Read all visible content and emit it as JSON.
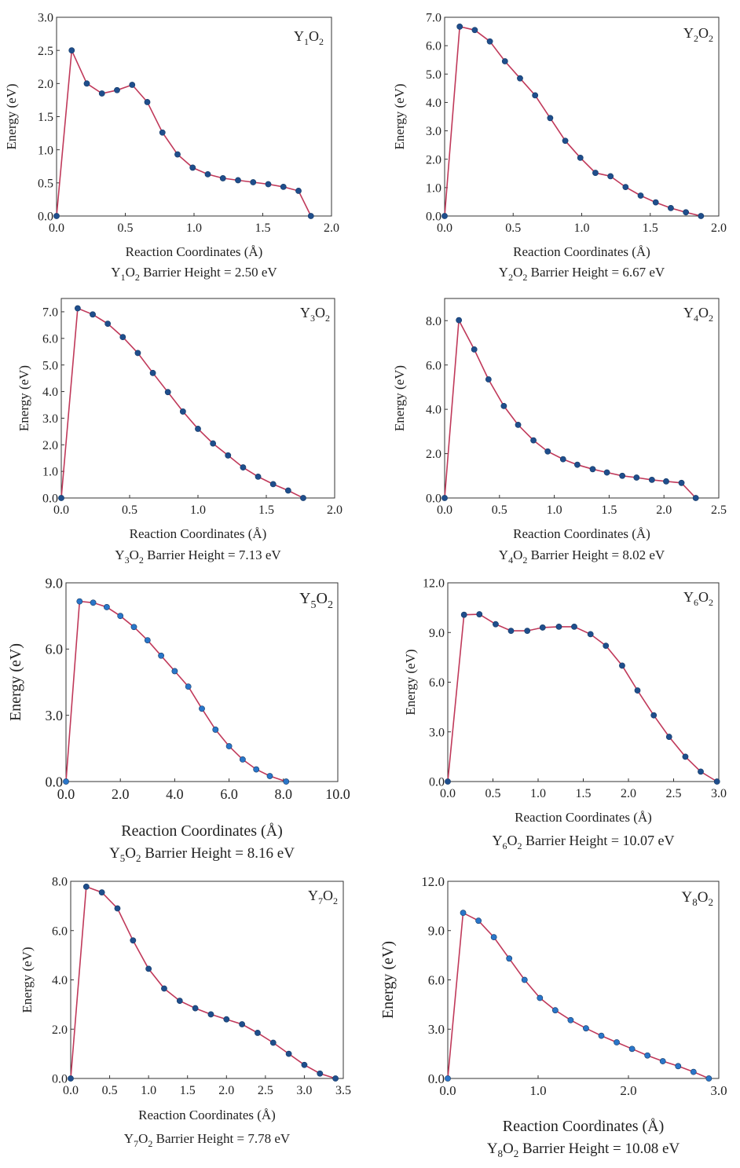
{
  "chart_data": [
    {
      "type": "line",
      "title": "Y1O2",
      "caption": "Y1O2 Barrier Height = 2.50 eV",
      "xlabel": "Reaction Coordinates (Å)",
      "ylabel": "Energy (eV)",
      "xlim": [
        0,
        2.0
      ],
      "ylim": [
        0,
        3.0
      ],
      "xticks": [
        0,
        0.5,
        1.0,
        1.5,
        2.0
      ],
      "xtick_labels": [
        "0.0",
        "0.5",
        "1.0",
        "1.5",
        "2.0"
      ],
      "yticks": [
        0,
        0.5,
        1.0,
        1.5,
        2.0,
        2.5,
        3.0
      ],
      "ytick_labels": [
        "0.0",
        "0.5",
        "1.0",
        "1.5",
        "2.0",
        "2.5",
        "3.0"
      ],
      "line_color": "#c0395a",
      "marker_color": "#1f4e8c",
      "x": [
        0,
        0.11,
        0.22,
        0.33,
        0.44,
        0.55,
        0.66,
        0.77,
        0.88,
        0.99,
        1.1,
        1.21,
        1.32,
        1.43,
        1.54,
        1.65,
        1.76,
        1.85
      ],
      "y": [
        0,
        2.5,
        2.0,
        1.85,
        1.9,
        1.98,
        1.72,
        1.26,
        0.93,
        0.73,
        0.63,
        0.57,
        0.54,
        0.51,
        0.48,
        0.44,
        0.38,
        0
      ]
    },
    {
      "type": "line",
      "title": "Y2O2",
      "caption": "Y2O2 Barrier Height = 6.67 eV",
      "xlabel": "Reaction Coordinates (Å)",
      "ylabel": "Energy (eV)",
      "xlim": [
        0,
        2.0
      ],
      "ylim": [
        0,
        7.0
      ],
      "xticks": [
        0,
        0.5,
        1.0,
        1.5,
        2.0
      ],
      "xtick_labels": [
        "0.0",
        "0.5",
        "1.0",
        "1.5",
        "2.0"
      ],
      "yticks": [
        0,
        1,
        2,
        3,
        4,
        5,
        6,
        7
      ],
      "ytick_labels": [
        "0.0",
        "1.0",
        "2.0",
        "3.0",
        "4.0",
        "5.0",
        "6.0",
        "7.0"
      ],
      "line_color": "#c0395a",
      "marker_color": "#1f4e8c",
      "x": [
        0,
        0.11,
        0.22,
        0.33,
        0.44,
        0.55,
        0.66,
        0.77,
        0.88,
        0.99,
        1.1,
        1.21,
        1.32,
        1.43,
        1.54,
        1.65,
        1.76,
        1.87
      ],
      "y": [
        0,
        6.67,
        6.55,
        6.15,
        5.45,
        4.85,
        4.25,
        3.45,
        2.65,
        2.05,
        1.52,
        1.4,
        1.02,
        0.72,
        0.48,
        0.28,
        0.13,
        0
      ]
    },
    {
      "type": "line",
      "title": "Y3O2",
      "caption": "Y3O2 Barrier Height = 7.13 eV",
      "xlabel": "Reaction Coordinates (Å)",
      "ylabel": "Energy (eV)",
      "xlim": [
        0,
        2.0
      ],
      "ylim": [
        0,
        7.5
      ],
      "xticks": [
        0,
        0.5,
        1.0,
        1.5,
        2.0
      ],
      "xtick_labels": [
        "0.0",
        "0.5",
        "1.0",
        "1.5",
        "2.0"
      ],
      "yticks": [
        0,
        1,
        2,
        3,
        4,
        5,
        6,
        7
      ],
      "ytick_labels": [
        "0.0",
        "1.0",
        "2.0",
        "3.0",
        "4.0",
        "5.0",
        "6.0",
        "7.0"
      ],
      "line_color": "#c0395a",
      "marker_color": "#1f4e8c",
      "x": [
        0,
        0.12,
        0.23,
        0.34,
        0.45,
        0.56,
        0.67,
        0.78,
        0.89,
        1.0,
        1.11,
        1.22,
        1.33,
        1.44,
        1.55,
        1.66,
        1.77
      ],
      "y": [
        0,
        7.13,
        6.9,
        6.55,
        6.05,
        5.45,
        4.7,
        3.98,
        3.25,
        2.6,
        2.05,
        1.6,
        1.15,
        0.8,
        0.52,
        0.28,
        0
      ]
    },
    {
      "type": "line",
      "title": "Y4O2",
      "caption": "Y4O2 Barrier Height = 8.02 eV",
      "xlabel": "Reaction Coordinates (Å)",
      "ylabel": "Energy (eV)",
      "xlim": [
        0,
        2.5
      ],
      "ylim": [
        0,
        9.0
      ],
      "xticks": [
        0,
        0.5,
        1.0,
        1.5,
        2.0,
        2.5
      ],
      "xtick_labels": [
        "0.0",
        "0.5",
        "1.0",
        "1.5",
        "2.0",
        "2.5"
      ],
      "yticks": [
        0,
        2,
        4,
        6,
        8
      ],
      "ytick_labels": [
        "0.0",
        "2.0",
        "4.0",
        "6.0",
        "8.0"
      ],
      "line_color": "#c0395a",
      "marker_color": "#1f4e8c",
      "x": [
        0,
        0.13,
        0.27,
        0.4,
        0.54,
        0.67,
        0.81,
        0.94,
        1.08,
        1.21,
        1.35,
        1.48,
        1.62,
        1.75,
        1.89,
        2.02,
        2.16,
        2.29
      ],
      "y": [
        0,
        8.02,
        6.7,
        5.35,
        4.15,
        3.3,
        2.6,
        2.1,
        1.75,
        1.5,
        1.3,
        1.15,
        1.0,
        0.92,
        0.82,
        0.75,
        0.68,
        0
      ]
    },
    {
      "type": "line",
      "title": "Y5O2",
      "caption": "Y5O2 Barrier Height = 8.16 eV",
      "xlabel": "Reaction Coordinates (Å)",
      "ylabel": "Energy (eV)",
      "xlim": [
        0,
        10.0
      ],
      "ylim": [
        0,
        9.0
      ],
      "xticks": [
        0,
        2,
        4,
        6,
        8,
        10
      ],
      "xtick_labels": [
        "0.0",
        "2.0",
        "4.0",
        "6.0",
        "8.0",
        "10.0"
      ],
      "yticks": [
        0,
        3,
        6,
        9
      ],
      "ytick_labels": [
        "0.0",
        "3.0",
        "6.0",
        "9.0"
      ],
      "line_color": "#c0395a",
      "marker_color": "#2a76c9",
      "x": [
        0,
        0.5,
        1.0,
        1.5,
        2.0,
        2.5,
        3.0,
        3.5,
        4.0,
        4.5,
        5.0,
        5.5,
        6.0,
        6.5,
        7.0,
        7.5,
        8.1
      ],
      "y": [
        0,
        8.16,
        8.1,
        7.9,
        7.5,
        7.0,
        6.4,
        5.7,
        5.0,
        4.3,
        3.3,
        2.35,
        1.6,
        1.0,
        0.55,
        0.25,
        0
      ]
    },
    {
      "type": "line",
      "title": "Y6O2",
      "caption": "Y6O2 Barrier Height = 10.07 eV",
      "xlabel": "Reaction Coordinates (Å)",
      "ylabel": "Energy (eV)",
      "xlim": [
        0,
        3.0
      ],
      "ylim": [
        0,
        12.0
      ],
      "xticks": [
        0,
        0.5,
        1.0,
        1.5,
        2.0,
        2.5,
        3.0
      ],
      "xtick_labels": [
        "0.0",
        "0.5",
        "1.0",
        "1.5",
        "2.0",
        "2.5",
        "3.0"
      ],
      "yticks": [
        0,
        3,
        6,
        9,
        12
      ],
      "ytick_labels": [
        "0.0",
        "3.0",
        "6.0",
        "9.0",
        "12.0"
      ],
      "line_color": "#c0395a",
      "marker_color": "#1f4e8c",
      "x": [
        0,
        0.18,
        0.35,
        0.53,
        0.7,
        0.88,
        1.05,
        1.23,
        1.4,
        1.58,
        1.75,
        1.93,
        2.1,
        2.28,
        2.45,
        2.63,
        2.8,
        2.98
      ],
      "y": [
        0,
        10.07,
        10.1,
        9.5,
        9.1,
        9.1,
        9.3,
        9.35,
        9.35,
        8.9,
        8.2,
        7.0,
        5.5,
        4.0,
        2.7,
        1.5,
        0.6,
        0
      ]
    },
    {
      "type": "line",
      "title": "Y7O2",
      "caption": "Y7O2 Barrier Height = 7.78 eV",
      "xlabel": "Reaction Coordinates (Å)",
      "ylabel": "Energy (eV)",
      "xlim": [
        0,
        3.5
      ],
      "ylim": [
        0,
        8.0
      ],
      "xticks": [
        0,
        0.5,
        1.0,
        1.5,
        2.0,
        2.5,
        3.0,
        3.5
      ],
      "xtick_labels": [
        "0.0",
        "0.5",
        "1.0",
        "1.5",
        "2.0",
        "2.5",
        "3.0",
        "3.5"
      ],
      "yticks": [
        0,
        2,
        4,
        6,
        8
      ],
      "ytick_labels": [
        "0.0",
        "2.0",
        "4.0",
        "6.0",
        "8.0"
      ],
      "line_color": "#c0395a",
      "marker_color": "#1f4e8c",
      "x": [
        0,
        0.2,
        0.4,
        0.6,
        0.8,
        1.0,
        1.2,
        1.4,
        1.6,
        1.8,
        2.0,
        2.2,
        2.4,
        2.6,
        2.8,
        3.0,
        3.2,
        3.4
      ],
      "y": [
        0,
        7.78,
        7.55,
        6.9,
        5.6,
        4.45,
        3.65,
        3.15,
        2.85,
        2.6,
        2.4,
        2.2,
        1.85,
        1.45,
        1.0,
        0.55,
        0.2,
        0
      ]
    },
    {
      "type": "line",
      "title": "Y8O2",
      "caption": "Y8O2 Barrier Height = 10.08 eV",
      "xlabel": "Reaction Coordinates (Å)",
      "ylabel": "Energy (eV)",
      "xlim": [
        0,
        3.0
      ],
      "ylim": [
        0,
        12.0
      ],
      "xticks": [
        0,
        1.0,
        2.0,
        3.0
      ],
      "xtick_labels": [
        "0.0",
        "1.0",
        "2.0",
        "3.0"
      ],
      "yticks": [
        0,
        3,
        6,
        9,
        12
      ],
      "ytick_labels": [
        "0.0",
        "3.0",
        "6.0",
        "9.0",
        "12.0"
      ],
      "line_color": "#c0395a",
      "marker_color": "#2a76c9",
      "x": [
        0,
        0.17,
        0.34,
        0.51,
        0.68,
        0.85,
        1.02,
        1.19,
        1.36,
        1.53,
        1.7,
        1.87,
        2.04,
        2.21,
        2.38,
        2.55,
        2.72,
        2.89
      ],
      "y": [
        0,
        10.08,
        9.6,
        8.6,
        7.3,
        6.0,
        4.9,
        4.15,
        3.55,
        3.05,
        2.6,
        2.2,
        1.8,
        1.4,
        1.05,
        0.75,
        0.4,
        0
      ]
    }
  ]
}
